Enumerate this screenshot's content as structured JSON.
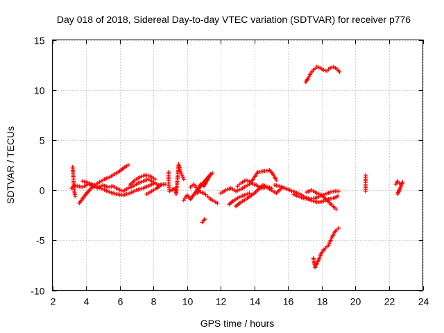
{
  "chart_data": {
    "type": "scatter",
    "title": "Day 018 of 2018, Sidereal Day-to-day VTEC variation (SDTVAR) for receiver p776",
    "xlabel": "GPS time / hours",
    "ylabel": "SDTVAR / TECUs",
    "xlim": [
      2,
      24
    ],
    "ylim": [
      -10,
      15
    ],
    "x_ticks": [
      "2",
      "4",
      "6",
      "8",
      "10",
      "12",
      "14",
      "16",
      "18",
      "20",
      "22",
      "24"
    ],
    "y_ticks": [
      "-10",
      "-5",
      "0",
      "5",
      "10",
      "15"
    ],
    "grid": true,
    "marker": "+",
    "color": "#ff0000",
    "series": [
      {
        "name": "SDTVAR",
        "segments": [
          {
            "x": [
              3.15,
              3.3,
              3.5,
              3.8,
              4.1,
              4.4,
              4.7,
              5.0,
              5.3,
              5.6,
              5.9,
              6.2,
              6.5,
              6.8,
              7.1,
              7.4,
              7.7,
              8.0,
              8.3,
              8.7
            ],
            "y": [
              0.2,
              0.5,
              0.4,
              0.3,
              0.6,
              0.4,
              0.2,
              0.5,
              0.3,
              0.4,
              0.1,
              -0.1,
              0.2,
              0.4,
              0.7,
              0.9,
              1.1,
              0.8,
              0.5,
              0.6
            ]
          },
          {
            "x": [
              3.2,
              3.25,
              3.3,
              3.35
            ],
            "y": [
              2.3,
              1.2,
              -0.1,
              -0.6
            ]
          },
          {
            "x": [
              3.6,
              3.9,
              4.2,
              4.5,
              4.8,
              5.1,
              5.4,
              5.7,
              6.0,
              6.3,
              6.5
            ],
            "y": [
              -1.3,
              -0.6,
              0.0,
              0.5,
              0.8,
              1.1,
              1.3,
              1.6,
              1.9,
              2.3,
              2.5
            ]
          },
          {
            "x": [
              3.8,
              4.2,
              4.6,
              5.0,
              5.4,
              5.8,
              6.2,
              6.6,
              7.0,
              7.4,
              7.8,
              8.1
            ],
            "y": [
              0.9,
              0.7,
              0.4,
              0.1,
              -0.2,
              -0.4,
              -0.5,
              -0.3,
              0.0,
              0.2,
              0.5,
              0.7
            ]
          },
          {
            "x": [
              6.6,
              6.9,
              7.2,
              7.5,
              7.8,
              8.1
            ],
            "y": [
              0.5,
              1.0,
              1.3,
              1.5,
              1.4,
              1.1
            ]
          },
          {
            "x": [
              7.6,
              7.9,
              8.2,
              8.5
            ],
            "y": [
              -0.4,
              -0.1,
              0.2,
              0.6
            ]
          },
          {
            "x": [
              8.9,
              8.9,
              8.95,
              9.3,
              9.35,
              9.5,
              9.6,
              9.7,
              9.8
            ],
            "y": [
              1.8,
              0.8,
              -0.1,
              0.2,
              -0.4,
              2.6,
              1.9,
              1.5,
              1.1
            ]
          },
          {
            "x": [
              10.2,
              10.4,
              10.6,
              10.8,
              11.0,
              11.2,
              11.4,
              11.6,
              11.8
            ],
            "y": [
              0.3,
              0.6,
              0.1,
              -0.2,
              -0.3,
              -0.6,
              -0.9,
              -1.1,
              -1.3
            ]
          },
          {
            "x": [
              10.6,
              10.8,
              11.0,
              11.4
            ],
            "y": [
              -0.3,
              0.6,
              0.4,
              1.6
            ]
          },
          {
            "x": [
              10.9,
              11.0,
              11.05
            ],
            "y": [
              -3.2,
              -3.0,
              -2.9
            ]
          },
          {
            "x": [
              9.8,
              10.0,
              10.2,
              10.6,
              11.3,
              11.5
            ],
            "y": [
              -1.0,
              -0.5,
              -0.9,
              0.0,
              1.4,
              1.7
            ]
          },
          {
            "x": [
              12.0,
              12.3,
              12.6,
              12.9,
              13.2,
              13.5,
              13.8,
              14.1,
              14.4,
              14.7,
              15.0,
              15.3,
              15.6
            ],
            "y": [
              -0.3,
              0.0,
              0.2,
              -0.1,
              0.1,
              0.4,
              0.7,
              0.5,
              0.2,
              0.3,
              0.0,
              -0.3,
              0.2
            ]
          },
          {
            "x": [
              12.5,
              12.8,
              13.1,
              13.4,
              13.7
            ],
            "y": [
              -1.4,
              -1.0,
              -0.7,
              -0.5,
              -0.3
            ]
          },
          {
            "x": [
              13.0,
              13.2,
              13.5,
              13.8,
              14.2,
              14.6,
              14.9,
              15.1,
              15.3
            ],
            "y": [
              0.4,
              0.7,
              1.0,
              0.8,
              1.8,
              1.9,
              2.0,
              1.6,
              1.0
            ]
          },
          {
            "x": [
              12.9,
              13.2,
              13.5,
              14.0,
              14.5,
              15.0
            ],
            "y": [
              -1.6,
              -1.2,
              -0.9,
              -0.3,
              0.5,
              0.2
            ]
          },
          {
            "x": [
              15.2,
              15.5,
              15.8,
              16.1,
              16.4,
              16.7,
              17.0,
              17.3,
              17.6,
              17.9,
              18.2,
              18.5,
              18.8,
              19.0
            ],
            "y": [
              0.5,
              0.4,
              0.2,
              0.0,
              -0.2,
              -0.4,
              -0.7,
              -0.9,
              -0.8,
              -0.6,
              -0.4,
              -0.2,
              -0.1,
              -0.1
            ]
          },
          {
            "x": [
              16.3,
              16.6,
              16.9,
              17.2,
              17.5,
              17.8,
              18.1,
              18.4,
              18.7,
              18.95
            ],
            "y": [
              -0.4,
              -0.6,
              -0.8,
              -0.9,
              -1.1,
              -1.2,
              -1.1,
              -0.9,
              -0.8,
              -0.6
            ]
          },
          {
            "x": [
              17.1,
              17.4,
              17.7,
              18.0,
              18.3,
              18.6,
              18.85
            ],
            "y": [
              -0.2,
              0.0,
              -0.3,
              -0.5,
              -1.0,
              -1.5,
              -1.9
            ]
          },
          {
            "x": [
              17.05,
              17.2,
              17.35,
              17.5,
              17.7,
              17.9,
              18.1,
              18.3,
              18.5,
              18.7,
              18.9,
              19.05
            ],
            "y": [
              10.8,
              11.2,
              11.7,
              12.0,
              12.3,
              12.2,
              12.0,
              11.9,
              12.2,
              12.3,
              12.1,
              11.8
            ]
          },
          {
            "x": [
              17.5,
              17.6,
              17.8,
              18.0,
              18.2,
              18.4,
              18.6,
              18.8,
              19.0
            ],
            "y": [
              -6.8,
              -7.7,
              -7.0,
              -6.2,
              -5.8,
              -5.5,
              -4.7,
              -4.1,
              -3.8
            ]
          },
          {
            "x": [
              20.6,
              20.6,
              20.6
            ],
            "y": [
              1.5,
              1.1,
              -0.1
            ]
          },
          {
            "x": [
              22.4,
              22.5,
              22.6,
              22.7,
              22.8,
              22.5,
              22.6
            ],
            "y": [
              0.6,
              0.9,
              0.7,
              0.5,
              0.8,
              -0.4,
              0.0
            ]
          }
        ]
      }
    ]
  }
}
